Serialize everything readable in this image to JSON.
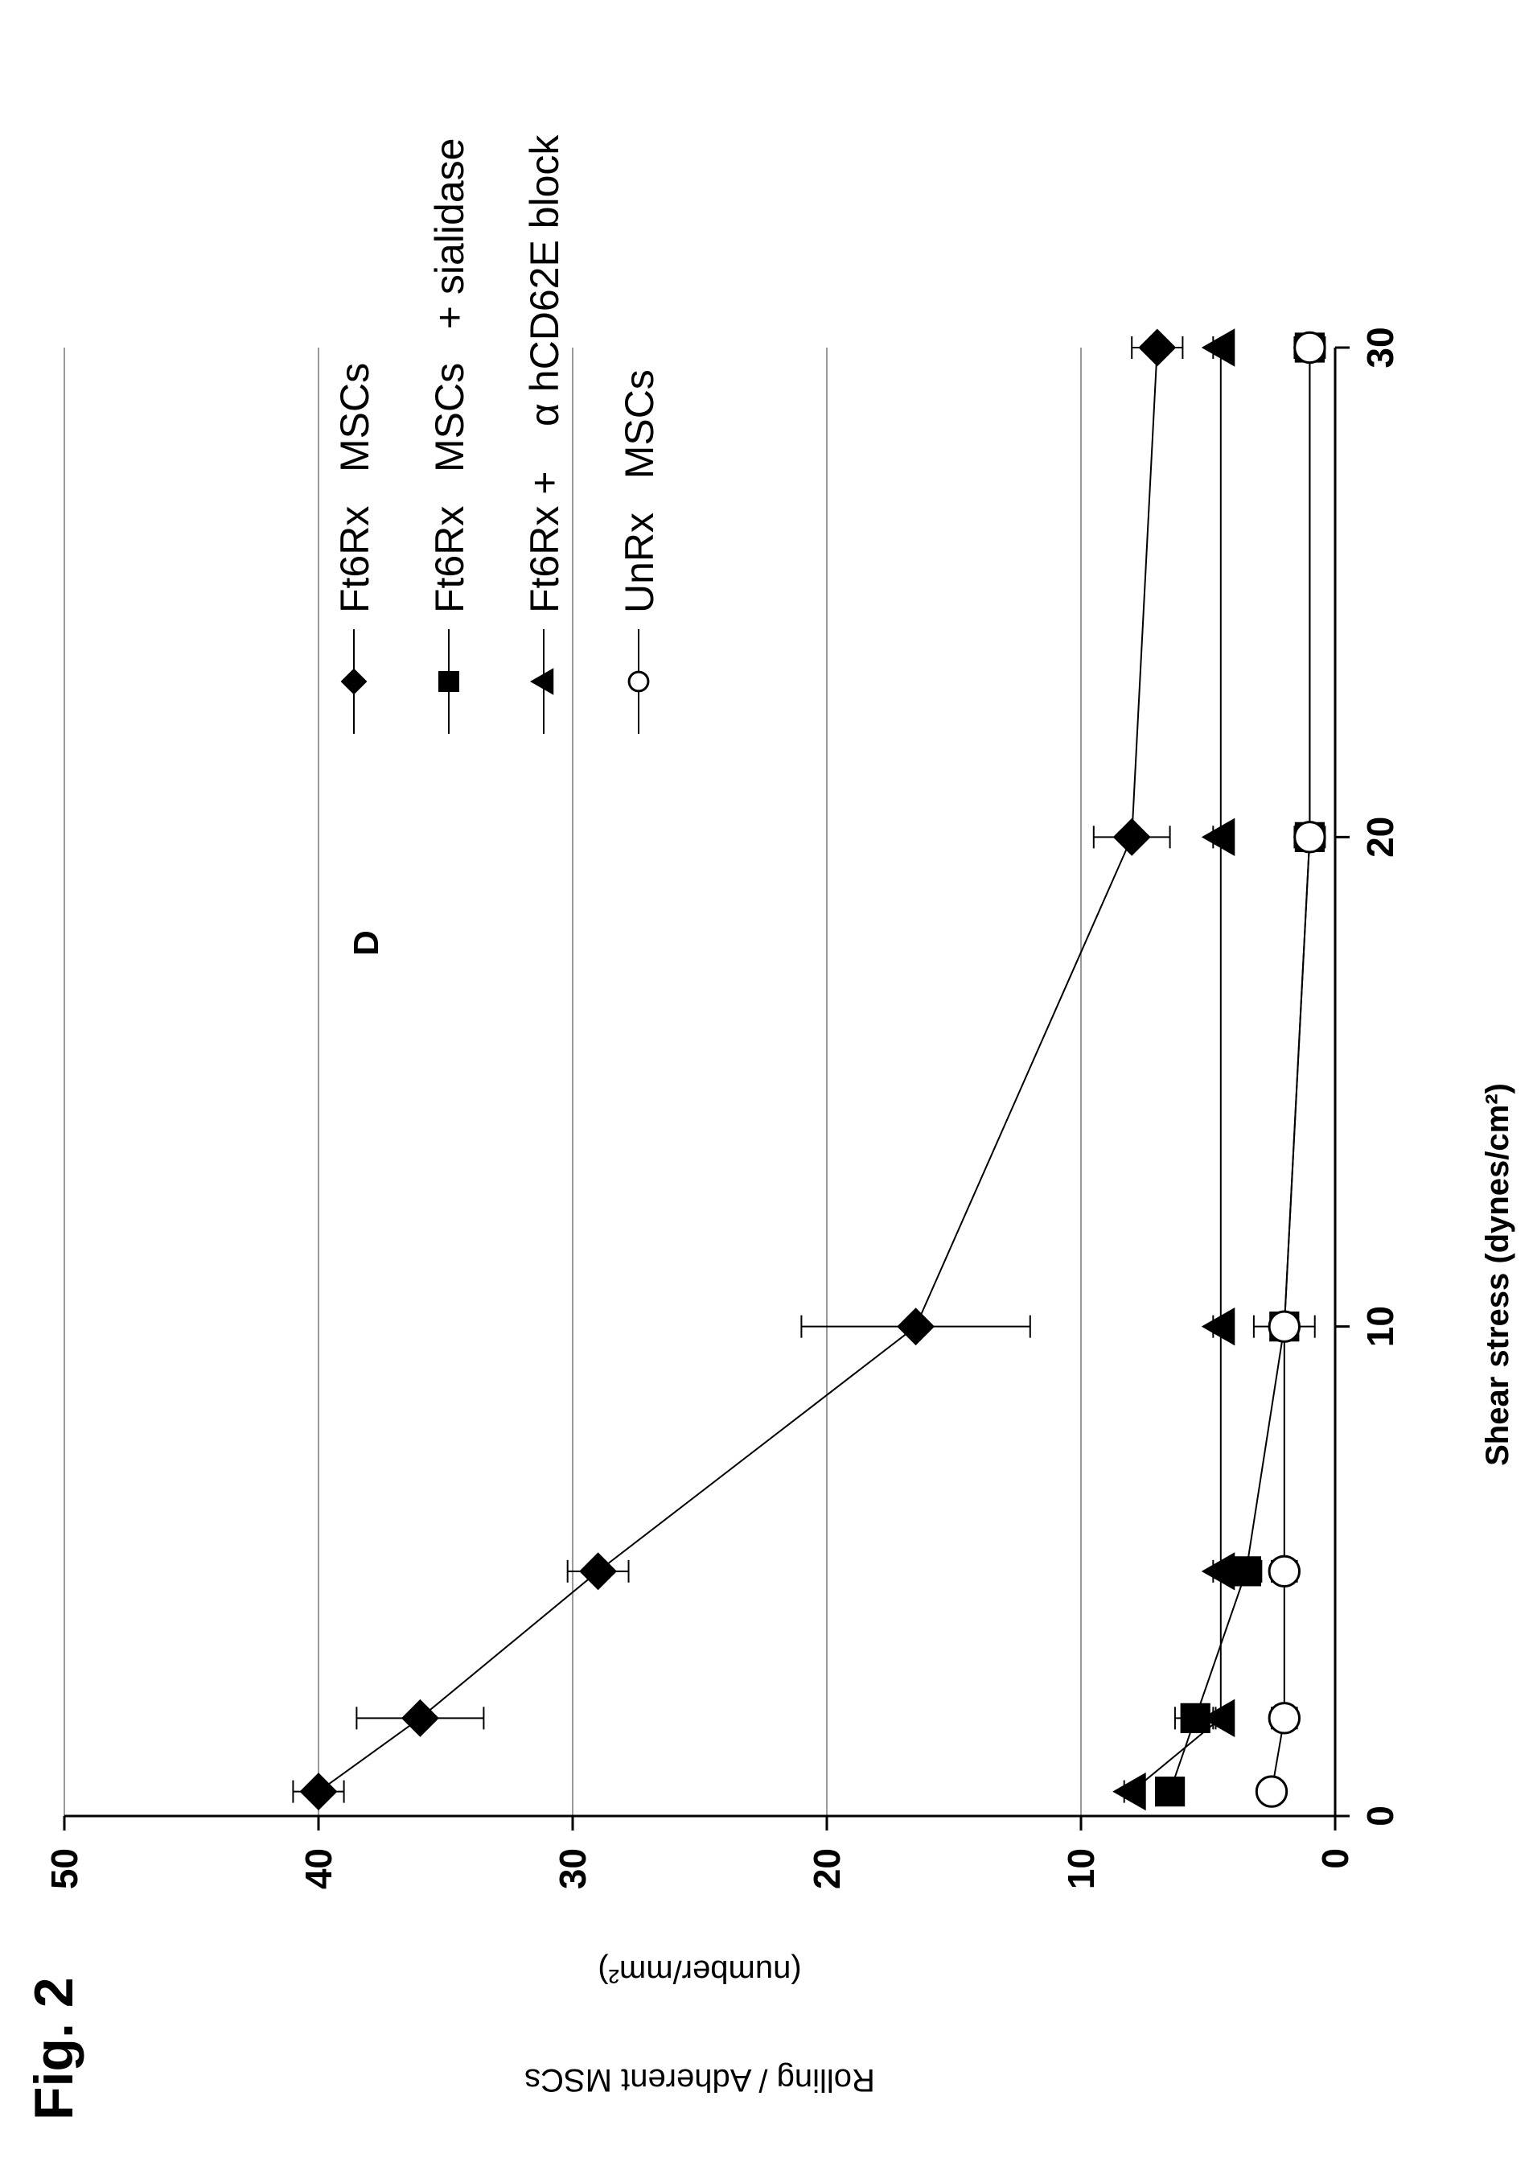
{
  "figure_label": "Fig. 2",
  "panel_letter": "D",
  "chart_data": {
    "type": "scatter",
    "xlabel": "Shear stress (dynes/cm²)",
    "ylabel": [
      "Rolling / Adherent MSCs",
      "(number/mm²)"
    ],
    "xlim": [
      0,
      30
    ],
    "ylim": [
      0,
      50
    ],
    "x_ticks": [
      0,
      10,
      20,
      30
    ],
    "y_ticks": [
      0,
      10,
      20,
      30,
      40,
      50
    ],
    "legend_position": "top-right",
    "series": [
      {
        "name": "Ft6Rx   MSCs",
        "marker": "diamond",
        "filled": true,
        "x": [
          0.5,
          2,
          5,
          10,
          20,
          30
        ],
        "y": [
          40,
          36,
          29,
          16.5,
          8,
          7
        ],
        "err": [
          1,
          2.5,
          1.2,
          4.5,
          1.5,
          1
        ]
      },
      {
        "name": "Ft6Rx   MSCs   + sialidase",
        "marker": "square",
        "filled": true,
        "x": [
          0.5,
          2,
          5,
          10,
          20,
          30
        ],
        "y": [
          6.5,
          5.5,
          3.5,
          2,
          1,
          1
        ],
        "err": [
          0.3,
          0.8,
          0.6,
          0.5,
          0.3,
          0.3
        ]
      },
      {
        "name": "Ft6Rx +    α hCD62E block",
        "marker": "triangle",
        "filled": true,
        "x": [
          0.5,
          2,
          5,
          10,
          20,
          30
        ],
        "y": [
          8,
          4.5,
          4.5,
          4.5,
          4.5,
          4.5
        ],
        "err": [
          0.3,
          0.3,
          0.3,
          0.3,
          0.3,
          0.3
        ]
      },
      {
        "name": "UnRx   MSCs",
        "marker": "circle",
        "filled": false,
        "x": [
          0.5,
          2,
          5,
          10,
          20,
          30
        ],
        "y": [
          2.5,
          2,
          2,
          2,
          1,
          1
        ],
        "err": [
          0.3,
          0.5,
          0.5,
          1.2,
          0.6,
          0.6
        ]
      }
    ]
  }
}
